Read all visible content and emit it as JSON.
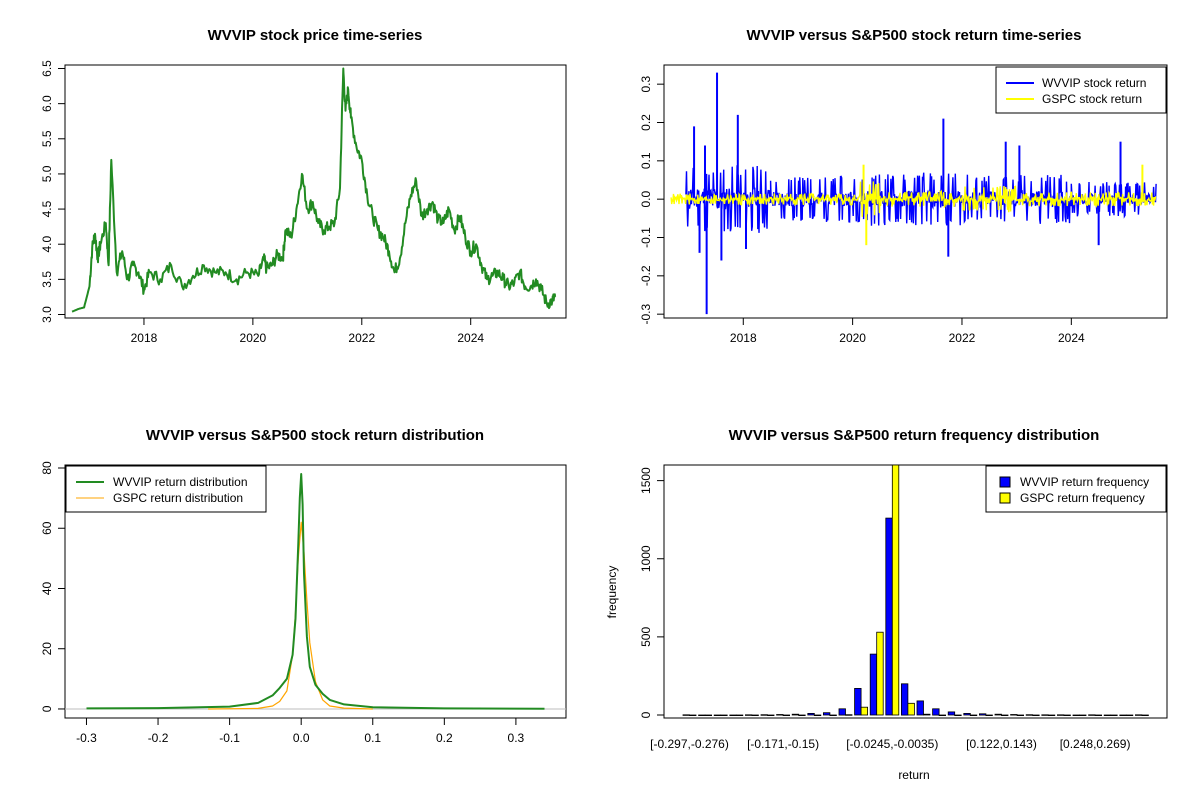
{
  "colors": {
    "green": "#228b22",
    "blue": "#0000ff",
    "yellow": "#ffff00",
    "orange": "#ffa500",
    "grey": "#bebebe"
  },
  "chart_data": [
    {
      "id": "p1",
      "type": "line",
      "title": "WVVIP stock price time-series",
      "xlabel": "",
      "ylabel": "",
      "xlim": [
        2016.55,
        2025.75
      ],
      "ylim": [
        2.95,
        6.55
      ],
      "xticks": [
        2018,
        2020,
        2022,
        2024
      ],
      "xtick_labels": [
        "2018",
        "2020",
        "2022",
        "2024"
      ],
      "yticks": [
        3.0,
        3.5,
        4.0,
        4.5,
        5.0,
        5.5,
        6.0,
        6.5
      ],
      "ytick_labels": [
        "3.0",
        "3.5",
        "4.0",
        "4.5",
        "5.0",
        "5.5",
        "6.0",
        "6.5"
      ],
      "series": [
        {
          "name": "WVVIP price",
          "color": "#228b22",
          "x": [
            2016.68,
            2016.8,
            2016.9,
            2017.0,
            2017.05,
            2017.1,
            2017.15,
            2017.2,
            2017.3,
            2017.35,
            2017.4,
            2017.5,
            2017.6,
            2017.7,
            2017.8,
            2017.9,
            2018.0,
            2018.1,
            2018.3,
            2018.5,
            2018.7,
            2018.9,
            2019.1,
            2019.3,
            2019.5,
            2019.7,
            2019.9,
            2020.1,
            2020.2,
            2020.25,
            2020.35,
            2020.45,
            2020.55,
            2020.6,
            2020.7,
            2020.8,
            2020.9,
            2021.0,
            2021.1,
            2021.2,
            2021.3,
            2021.4,
            2021.5,
            2021.6,
            2021.66,
            2021.7,
            2021.75,
            2021.8,
            2021.9,
            2022.0,
            2022.1,
            2022.2,
            2022.3,
            2022.4,
            2022.5,
            2022.6,
            2022.7,
            2022.8,
            2022.9,
            2023.0,
            2023.1,
            2023.2,
            2023.3,
            2023.4,
            2023.5,
            2023.6,
            2023.7,
            2023.8,
            2023.9,
            2024.0,
            2024.1,
            2024.2,
            2024.3,
            2024.4,
            2024.5,
            2024.6,
            2024.7,
            2024.8,
            2024.9,
            2025.0,
            2025.1,
            2025.2,
            2025.3,
            2025.4,
            2025.5,
            2025.55
          ],
          "values": [
            3.04,
            3.08,
            3.1,
            3.4,
            3.95,
            4.15,
            3.8,
            4.0,
            4.3,
            3.7,
            5.2,
            3.6,
            3.9,
            3.5,
            3.7,
            3.6,
            3.35,
            3.6,
            3.5,
            3.7,
            3.4,
            3.55,
            3.7,
            3.6,
            3.6,
            3.5,
            3.6,
            3.55,
            3.8,
            3.65,
            3.7,
            3.85,
            3.8,
            4.2,
            4.1,
            4.5,
            5.0,
            4.5,
            4.6,
            4.3,
            4.2,
            4.25,
            4.3,
            4.8,
            6.5,
            5.9,
            6.2,
            5.8,
            5.4,
            5.2,
            4.7,
            4.4,
            4.2,
            4.1,
            3.9,
            3.6,
            3.8,
            4.3,
            4.7,
            4.9,
            4.4,
            4.5,
            4.6,
            4.35,
            4.3,
            4.5,
            4.2,
            4.4,
            4.1,
            3.9,
            4.0,
            3.7,
            3.5,
            3.55,
            3.6,
            3.5,
            3.4,
            3.45,
            3.6,
            3.4,
            3.4,
            3.5,
            3.35,
            3.15,
            3.2,
            3.25
          ]
        }
      ]
    },
    {
      "id": "p2",
      "type": "line",
      "title": "WVVIP versus S&P500 stock return time-series",
      "xlim": [
        2016.55,
        2025.75
      ],
      "ylim": [
        -0.31,
        0.35
      ],
      "xticks": [
        2018,
        2020,
        2022,
        2024
      ],
      "xtick_labels": [
        "2018",
        "2020",
        "2022",
        "2024"
      ],
      "yticks": [
        -0.3,
        -0.2,
        -0.1,
        0.0,
        0.1,
        0.2,
        0.3
      ],
      "ytick_labels": [
        "-0.3",
        "-0.2",
        "-0.1",
        "0.0",
        "0.1",
        "0.2",
        "0.3"
      ],
      "legend_position": "top-right",
      "legend": [
        "WVVIP stock return",
        "GSPC stock return"
      ],
      "series": [
        {
          "name": "WVVIP stock return",
          "color": "#0000ff",
          "spikes": [
            {
              "x": 2017.1,
              "y": 0.19
            },
            {
              "x": 2017.2,
              "y": -0.14
            },
            {
              "x": 2017.3,
              "y": 0.14
            },
            {
              "x": 2017.33,
              "y": -0.3
            },
            {
              "x": 2017.52,
              "y": 0.33
            },
            {
              "x": 2017.6,
              "y": -0.16
            },
            {
              "x": 2017.9,
              "y": 0.22
            },
            {
              "x": 2018.05,
              "y": -0.13
            },
            {
              "x": 2021.66,
              "y": 0.21
            },
            {
              "x": 2021.75,
              "y": -0.15
            },
            {
              "x": 2022.8,
              "y": 0.15
            },
            {
              "x": 2023.05,
              "y": 0.14
            },
            {
              "x": 2024.5,
              "y": -0.12
            },
            {
              "x": 2024.9,
              "y": 0.15
            }
          ],
          "band": [
            {
              "x": [
                2016.95,
                2018.5
              ],
              "amp": 0.09
            },
            {
              "x": [
                2018.5,
                2020.2
              ],
              "amp": 0.06
            },
            {
              "x": [
                2020.2,
                2022.0
              ],
              "amp": 0.07
            },
            {
              "x": [
                2022.0,
                2024.0
              ],
              "amp": 0.065
            },
            {
              "x": [
                2024.0,
                2025.55
              ],
              "amp": 0.045
            }
          ]
        },
        {
          "name": "GSPC stock return",
          "color": "#ffff00",
          "spikes": [
            {
              "x": 2020.2,
              "y": 0.09
            },
            {
              "x": 2020.25,
              "y": -0.12
            },
            {
              "x": 2025.3,
              "y": 0.09
            }
          ],
          "band": [
            {
              "x": [
                2016.68,
                2020.1
              ],
              "amp": 0.015
            },
            {
              "x": [
                2020.1,
                2020.5
              ],
              "amp": 0.05
            },
            {
              "x": [
                2020.5,
                2022.0
              ],
              "amp": 0.02
            },
            {
              "x": [
                2022.0,
                2023.0
              ],
              "amp": 0.035
            },
            {
              "x": [
                2023.0,
                2025.55
              ],
              "amp": 0.018
            }
          ]
        }
      ]
    },
    {
      "id": "p3",
      "type": "line",
      "title": "WVVIP versus S&P500 stock return distribution",
      "xlim": [
        -0.33,
        0.37
      ],
      "ylim": [
        -3,
        81
      ],
      "xticks": [
        -0.3,
        -0.2,
        -0.1,
        0.0,
        0.1,
        0.2,
        0.3
      ],
      "xtick_labels": [
        "-0.3",
        "-0.2",
        "-0.1",
        "0.0",
        "0.1",
        "0.2",
        "0.3"
      ],
      "yticks": [
        0,
        20,
        40,
        60,
        80
      ],
      "ytick_labels": [
        "0",
        "20",
        "40",
        "60",
        "80"
      ],
      "legend_position": "top-left",
      "legend": [
        "WVVIP return distribution",
        "GSPC return distribution"
      ],
      "series": [
        {
          "name": "WVVIP return distribution",
          "color": "#228b22",
          "x": [
            -0.3,
            -0.2,
            -0.1,
            -0.06,
            -0.04,
            -0.03,
            -0.02,
            -0.012,
            -0.008,
            -0.004,
            -0.002,
            0.0,
            0.002,
            0.004,
            0.008,
            0.012,
            0.02,
            0.03,
            0.04,
            0.06,
            0.1,
            0.2,
            0.34
          ],
          "values": [
            0.2,
            0.3,
            0.8,
            2.0,
            4.5,
            7,
            10,
            18,
            30,
            55,
            70,
            78,
            68,
            45,
            24,
            14,
            8,
            5,
            3,
            1.5,
            0.6,
            0.2,
            0.1
          ]
        },
        {
          "name": "GSPC return distribution",
          "color": "#ffa500",
          "x": [
            -0.13,
            -0.06,
            -0.04,
            -0.03,
            -0.02,
            -0.012,
            -0.008,
            -0.004,
            0.0,
            0.004,
            0.008,
            0.012,
            0.02,
            0.03,
            0.04,
            0.06,
            0.1
          ],
          "values": [
            0.0,
            0.2,
            1.0,
            2.5,
            6,
            18,
            32,
            50,
            62,
            52,
            36,
            22,
            9,
            3,
            1,
            0.3,
            0.0
          ]
        }
      ]
    },
    {
      "id": "p4",
      "type": "bar",
      "title": "WVVIP versus S&P500 return frequency distribution",
      "xlabel": "return",
      "ylabel": "frequency",
      "ylim": [
        0,
        1600
      ],
      "yticks": [
        0,
        500,
        1000,
        1500
      ],
      "ytick_labels": [
        "0",
        "500",
        "1000",
        "1500"
      ],
      "categories": [
        "[-0.297,-0.276)",
        "[-0.276,-0.255)",
        "[-0.255,-0.234)",
        "[-0.234,-0.213)",
        "[-0.213,-0.192)",
        "[-0.192,-0.171)",
        "[-0.171,-0.15)",
        "[-0.15,-0.129)",
        "[-0.129,-0.108)",
        "[-0.108,-0.0875)",
        "[-0.0875,-0.0665)",
        "[-0.0665,-0.0455)",
        "[-0.0455,-0.0245)",
        "[-0.0245,-0.0035)",
        "[-0.0035,0.0175)",
        "[0.0175,0.0385)",
        "[0.0385,0.0595)",
        "[0.0595,0.0805)",
        "[0.0805,0.101)",
        "[0.101,0.122)",
        "[0.122,0.143)",
        "[0.143,0.164)",
        "[0.164,0.185)",
        "[0.185,0.206)",
        "[0.206,0.227)",
        "[0.227,0.248)",
        "[0.248,0.269)",
        "[0.269,0.29)",
        "[0.29,0.311)",
        "[0.311,0.332)"
      ],
      "shown_category_labels": [
        "[-0.297,-0.276)",
        "[-0.171,-0.15)",
        "[-0.0245,-0.0035)",
        "[0.122,0.143)",
        "[0.248,0.269)"
      ],
      "legend_position": "top-right",
      "legend": [
        "WVVIP return frequency",
        "GSPC return frequency"
      ],
      "series": [
        {
          "name": "WVVIP return frequency",
          "color": "#0000ff",
          "values": [
            1,
            0,
            0,
            0,
            1,
            2,
            3,
            5,
            10,
            15,
            40,
            170,
            390,
            1260,
            200,
            90,
            40,
            20,
            10,
            8,
            5,
            3,
            2,
            1,
            1,
            0,
            1,
            0,
            0,
            1
          ]
        },
        {
          "name": "GSPC return frequency",
          "color": "#ffff00",
          "values": [
            0,
            0,
            0,
            0,
            0,
            0,
            0,
            0,
            0,
            0,
            2,
            50,
            530,
            1620,
            75,
            5,
            0,
            0,
            0,
            0,
            0,
            0,
            0,
            0,
            0,
            0,
            0,
            0,
            0,
            0
          ]
        }
      ]
    }
  ]
}
